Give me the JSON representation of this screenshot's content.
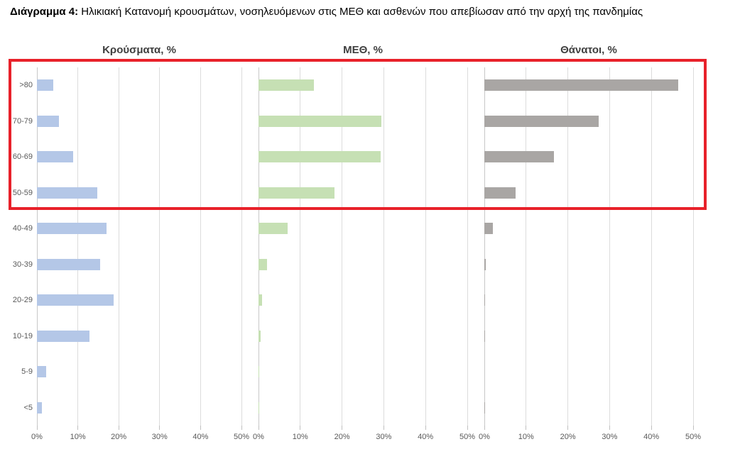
{
  "header": {
    "title_bold": "Διάγραμμα 4:",
    "title_rest": " Ηλικιακή Κατανομή κρουσμάτων, νοσηλευόμενων στις ΜΕΘ και ασθενών που απεβίωσαν από την αρχή της πανδημίας"
  },
  "chart_data": {
    "type": "bar",
    "orientation": "horizontal",
    "title": "Ηλικιακή Κατανομή κρουσμάτων, νοσηλευόμενων στις ΜΕΘ και ασθενών που απεβίωσαν από την αρχή της πανδημίας",
    "categories": [
      ">80",
      "70-79",
      "60-69",
      "50-59",
      "40-49",
      "30-39",
      "20-29",
      "10-19",
      "5-9",
      "<5"
    ],
    "series": [
      {
        "name": "Κρούσματα, %",
        "color": "#b4c7e7",
        "values": [
          4.0,
          5.3,
          8.8,
          14.8,
          17.1,
          15.5,
          18.7,
          12.9,
          2.2,
          1.3
        ]
      },
      {
        "name": "ΜΕΘ, %",
        "color": "#c6e0b4",
        "values": [
          13.2,
          29.5,
          29.3,
          18.2,
          6.9,
          2.1,
          0.9,
          0.5,
          0.1,
          0.2
        ]
      },
      {
        "name": "Θάνατοι, %",
        "color": "#a9a6a4",
        "values": [
          46.5,
          27.3,
          16.6,
          7.4,
          2.0,
          0.4,
          0.2,
          0.2,
          0.0,
          0.2
        ]
      }
    ],
    "xlim": [
      0,
      50
    ],
    "x_ticks": [
      "0%",
      "10%",
      "20%",
      "30%",
      "40%",
      "50%"
    ],
    "grid": "vertical",
    "legend": "none",
    "highlight": {
      "categories": [
        ">80",
        "70-79",
        "60-69",
        "50-59"
      ],
      "color": "#e8212a",
      "note": "red rectangle around the four oldest age groups across all three panels"
    }
  },
  "layout_text": {
    "panel_titles": [
      "Κρούσματα, %",
      "ΜΕΘ, %",
      "Θάνατοι, %"
    ]
  }
}
